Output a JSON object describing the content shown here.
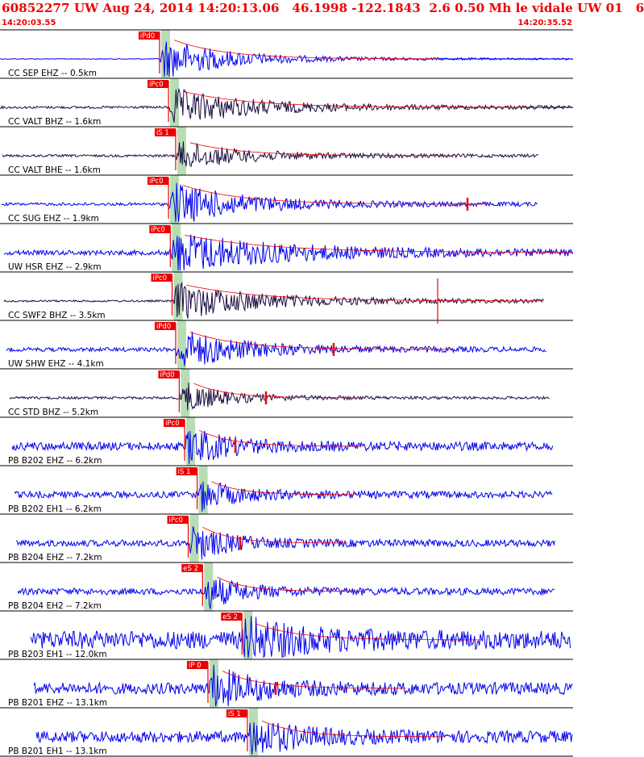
{
  "header": {
    "title": "60852277 UW Aug 24, 2014 14:20:13.06   46.1998 -122.1843  2.6 0.50 Mh le vidale UW 01   6",
    "start_time": "14:20:03.55",
    "end_time": "14:20:35.52"
  },
  "colors": {
    "title": "#ee0000",
    "broadband_trace": "#1a0a40",
    "short_period_trace": "#0000ee",
    "pick": "#ee0000",
    "window": "#b7ddb5"
  },
  "chart_data": {
    "type": "line",
    "title": "",
    "x_range": [
      "14:20:03.55",
      "14:20:35.52"
    ],
    "traces": [
      {
        "label": "CC SEP EHZ -- 0.5km",
        "color_key": "short_period_trace",
        "picks": [
          {
            "label": "iPd0",
            "time": 8.9
          }
        ]
      },
      {
        "label": "CC VALT BHZ -- 1.6km",
        "color_key": "broadband_trace",
        "picks": [
          {
            "label": "iPc0",
            "time": 9.4
          }
        ]
      },
      {
        "label": "CC VALT BHE -- 1.6km",
        "color_key": "broadband_trace",
        "picks": [
          {
            "label": "iS 1",
            "time": 9.8
          }
        ]
      },
      {
        "label": "CC SUG EHZ -- 1.9km",
        "color_key": "short_period_trace",
        "picks": [
          {
            "label": "iPc0",
            "time": 9.4
          }
        ]
      },
      {
        "label": "UW HSR EHZ -- 2.9km",
        "color_key": "short_period_trace",
        "picks": [
          {
            "label": "iPc0",
            "time": 9.5
          }
        ]
      },
      {
        "label": "CC SWF2 BHZ -- 3.5km",
        "color_key": "broadband_trace",
        "picks": [
          {
            "label": "iPc0",
            "time": 9.6
          }
        ]
      },
      {
        "label": "UW SHW EHZ -- 4.1km",
        "color_key": "short_period_trace",
        "picks": [
          {
            "label": "iPd0",
            "time": 9.8
          }
        ]
      },
      {
        "label": "CC STD BHZ -- 5.2km",
        "color_key": "broadband_trace",
        "picks": [
          {
            "label": "iPd0",
            "time": 10.0
          }
        ]
      },
      {
        "label": "PB B202 EHZ -- 6.2km",
        "color_key": "short_period_trace",
        "picks": [
          {
            "label": "iPc0",
            "time": 10.3
          }
        ]
      },
      {
        "label": "PB B202 EH1 -- 6.2km",
        "color_key": "short_period_trace",
        "picks": [
          {
            "label": "iS 1",
            "time": 11.0
          }
        ]
      },
      {
        "label": "PB B204 EHZ -- 7.2km",
        "color_key": "short_period_trace",
        "picks": [
          {
            "label": "iPc0",
            "time": 10.5
          }
        ]
      },
      {
        "label": "PB B204 EH2 -- 7.2km",
        "color_key": "short_period_trace",
        "picks": [
          {
            "label": "eS 2",
            "time": 11.3
          }
        ]
      },
      {
        "label": "PB B203 EH1 -- 12.0km",
        "color_key": "short_period_trace",
        "picks": [
          {
            "label": "eS 2",
            "time": 13.5
          }
        ]
      },
      {
        "label": "PB B201 EHZ -- 13.1km",
        "color_key": "short_period_trace",
        "picks": [
          {
            "label": "iP 0",
            "time": 11.6
          }
        ]
      },
      {
        "label": "PB B201 EH1 -- 13.1km",
        "color_key": "short_period_trace",
        "picks": [
          {
            "label": "iS 1",
            "time": 13.8
          }
        ]
      }
    ]
  }
}
